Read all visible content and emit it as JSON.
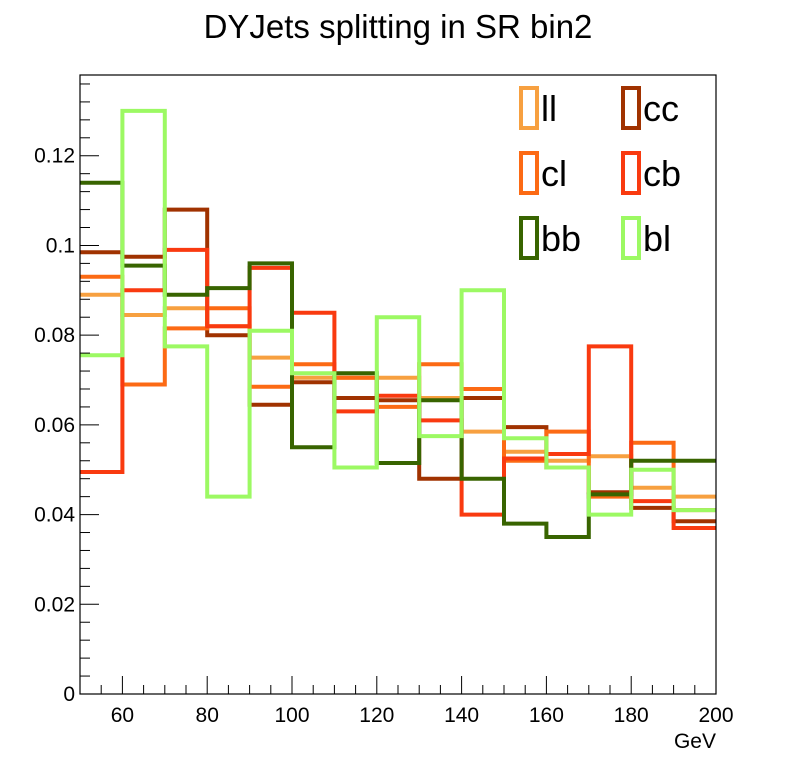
{
  "chart_data": {
    "type": "histogram-step",
    "title": "DYJets splitting in SR bin2",
    "xlabel": "GeV",
    "ylabel": "",
    "xlim": [
      50,
      200
    ],
    "ylim": [
      0,
      0.138
    ],
    "bin_edges": [
      50,
      60,
      70,
      80,
      90,
      100,
      110,
      120,
      130,
      140,
      150,
      160,
      170,
      180,
      190,
      200
    ],
    "x_ticks": [
      60,
      80,
      100,
      120,
      140,
      160,
      180,
      200
    ],
    "x_tick_labels": [
      "60",
      "80",
      "100",
      "120",
      "140",
      "160",
      "180",
      "200"
    ],
    "y_ticks": [
      0,
      0.02,
      0.04,
      0.06,
      0.08,
      0.1,
      0.12
    ],
    "y_tick_labels": [
      "0",
      "0.02",
      "0.04",
      "0.06",
      "0.08",
      "0.1",
      "0.12"
    ],
    "grid": false,
    "legend_position": "top-right",
    "series": [
      {
        "name": "ll",
        "color": "#f7a040",
        "values": [
          0.089,
          0.0845,
          0.086,
          0.082,
          0.075,
          0.0705,
          0.0705,
          0.0705,
          0.066,
          0.0585,
          0.054,
          0.052,
          0.053,
          0.046,
          0.044
        ]
      },
      {
        "name": "cc",
        "color": "#a03200",
        "values": [
          0.0985,
          0.0975,
          0.108,
          0.08,
          0.0645,
          0.0695,
          0.066,
          0.0655,
          0.048,
          0.066,
          0.0595,
          0.0505,
          0.045,
          0.0415,
          0.0385
        ]
      },
      {
        "name": "cl",
        "color": "#fc6a14",
        "values": [
          0.093,
          0.069,
          0.0815,
          0.086,
          0.0685,
          0.0735,
          0.0705,
          0.064,
          0.0735,
          0.068,
          0.052,
          0.0585,
          0.044,
          0.056,
          0.041
        ]
      },
      {
        "name": "cb",
        "color": "#f93a10",
        "values": [
          0.0495,
          0.09,
          0.099,
          0.082,
          0.095,
          0.085,
          0.063,
          0.0665,
          0.061,
          0.04,
          0.0525,
          0.0535,
          0.0775,
          0.043,
          0.037
        ]
      },
      {
        "name": "bb",
        "color": "#386400",
        "values": [
          0.114,
          0.0955,
          0.089,
          0.0905,
          0.096,
          0.055,
          0.0715,
          0.0515,
          0.0655,
          0.048,
          0.038,
          0.035,
          0.0445,
          0.052,
          0.052
        ]
      },
      {
        "name": "bl",
        "color": "#9cf963",
        "values": [
          0.0755,
          0.13,
          0.0775,
          0.044,
          0.081,
          0.0715,
          0.0505,
          0.084,
          0.0575,
          0.09,
          0.057,
          0.0505,
          0.04,
          0.05,
          0.041
        ]
      }
    ]
  }
}
